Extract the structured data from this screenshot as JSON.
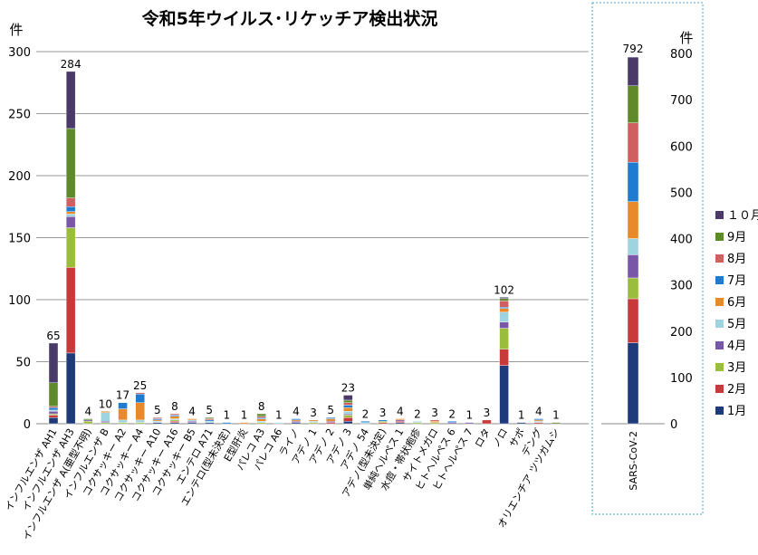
{
  "title": "令和5年ウイルス･リケッチア検出状況",
  "colors": {
    "1月": "#1f3a7a",
    "2月": "#c83a3a",
    "3月": "#9bbd3c",
    "4月": "#7a56a8",
    "5月": "#9ed4e0",
    "6月": "#e8892a",
    "7月": "#1f7bd0",
    "8月": "#d06060",
    "9月": "#5f8a2a",
    "１０月": "#4a3a6a"
  },
  "chart_data": [
    {
      "type": "bar",
      "stacked": true,
      "ylabel": "件",
      "ylim": [
        0,
        300
      ],
      "yticks": [
        0,
        50,
        100,
        150,
        200,
        250,
        300
      ],
      "grid": true,
      "categories": [
        "インフルエンザ AH1",
        "インフルエンザ AH3",
        "インフルエンザ A(亜型不明)",
        "インフルエンザ B",
        "コクサッキー A2",
        "コクサッキー A4",
        "コクサッキー A10",
        "コクサッキー A16",
        "コクサッキー B5",
        "エンテロ A71",
        "エンテロ(型未決定)",
        "E型肝炎",
        "パレコ A3",
        "パレコ A6",
        "ライノ",
        "アデノ 1",
        "アデノ 2",
        "アデノ 3",
        "アデノ 54",
        "アデノ(型未決定)",
        "単純ヘルペス 1",
        "水痘・帯状疱疹",
        "サイトメガロ",
        "ヒトヘルペス 6",
        "ヒトヘルペス 7",
        "ロタ",
        "ノロ",
        "サポ",
        "デング",
        "オリエンチア ツツガムシ"
      ],
      "totals": [
        65,
        284,
        4,
        10,
        17,
        25,
        5,
        8,
        4,
        5,
        1,
        1,
        8,
        1,
        4,
        3,
        5,
        23,
        2,
        3,
        4,
        2,
        3,
        2,
        1,
        3,
        102,
        1,
        4,
        1
      ],
      "series": [
        {
          "name": "1月",
          "values": [
            5,
            57,
            0,
            0,
            0,
            0,
            1,
            1,
            1,
            1,
            0,
            0,
            0,
            0,
            1,
            0,
            0,
            2,
            0,
            0,
            1,
            0,
            0,
            0,
            0,
            0,
            47,
            1,
            0,
            0
          ]
        },
        {
          "name": "2月",
          "values": [
            2,
            69,
            0,
            0,
            0,
            0,
            0,
            1,
            0,
            0,
            0,
            0,
            0,
            0,
            0,
            0,
            1,
            3,
            0,
            1,
            1,
            0,
            0,
            0,
            0,
            3,
            13,
            0,
            1,
            0
          ]
        },
        {
          "name": "3月",
          "values": [
            1,
            32,
            2,
            1,
            1,
            1,
            0,
            1,
            0,
            0,
            0,
            0,
            1,
            0,
            0,
            1,
            0,
            2,
            0,
            1,
            0,
            1,
            1,
            0,
            0,
            0,
            17,
            0,
            0,
            0
          ]
        },
        {
          "name": "4月",
          "values": [
            2,
            9,
            1,
            1,
            0,
            0,
            0,
            0,
            1,
            0,
            0,
            0,
            0,
            0,
            1,
            0,
            1,
            1,
            0,
            0,
            1,
            0,
            0,
            1,
            1,
            0,
            5,
            0,
            0,
            0
          ]
        },
        {
          "name": "5月",
          "values": [
            1,
            2,
            0,
            7,
            2,
            2,
            1,
            1,
            1,
            1,
            0,
            0,
            1,
            1,
            0,
            1,
            0,
            2,
            1,
            0,
            0,
            1,
            0,
            0,
            0,
            0,
            8,
            0,
            1,
            0
          ]
        },
        {
          "name": "6月",
          "values": [
            0,
            2,
            0,
            1,
            9,
            14,
            1,
            2,
            1,
            0,
            0,
            1,
            2,
            0,
            1,
            1,
            2,
            3,
            0,
            0,
            1,
            0,
            1,
            0,
            0,
            0,
            3,
            0,
            1,
            0
          ]
        },
        {
          "name": "7月",
          "values": [
            2,
            4,
            0,
            0,
            5,
            7,
            1,
            1,
            0,
            1,
            1,
            0,
            1,
            0,
            1,
            0,
            1,
            2,
            1,
            1,
            0,
            0,
            0,
            1,
            0,
            0,
            1,
            0,
            1,
            0
          ]
        },
        {
          "name": "8月",
          "values": [
            1,
            7,
            0,
            0,
            0,
            1,
            1,
            1,
            0,
            1,
            0,
            0,
            1,
            0,
            0,
            0,
            0,
            2,
            0,
            0,
            0,
            0,
            1,
            0,
            0,
            0,
            5,
            0,
            0,
            0
          ]
        },
        {
          "name": "9月",
          "values": [
            19,
            56,
            1,
            0,
            0,
            0,
            0,
            0,
            0,
            1,
            0,
            0,
            2,
            0,
            0,
            0,
            0,
            2,
            0,
            0,
            0,
            0,
            0,
            0,
            0,
            0,
            2,
            0,
            0,
            1
          ]
        },
        {
          "name": "１０月",
          "values": [
            32,
            46,
            0,
            0,
            0,
            0,
            0,
            0,
            0,
            0,
            0,
            0,
            0,
            0,
            0,
            0,
            0,
            4,
            0,
            0,
            0,
            0,
            0,
            0,
            0,
            0,
            1,
            0,
            0,
            0
          ]
        }
      ]
    },
    {
      "type": "bar",
      "stacked": true,
      "ylabel": "件",
      "ylim": [
        0,
        800
      ],
      "yticks": [
        0,
        100,
        200,
        300,
        400,
        500,
        600,
        700,
        800
      ],
      "categories": [
        "SARS-CoV-2"
      ],
      "totals": [
        792
      ],
      "series": [
        {
          "name": "1月",
          "values": [
            175
          ]
        },
        {
          "name": "2月",
          "values": [
            95
          ]
        },
        {
          "name": "3月",
          "values": [
            45
          ]
        },
        {
          "name": "4月",
          "values": [
            50
          ]
        },
        {
          "name": "5月",
          "values": [
            35
          ]
        },
        {
          "name": "6月",
          "values": [
            80
          ]
        },
        {
          "name": "7月",
          "values": [
            85
          ]
        },
        {
          "name": "8月",
          "values": [
            85
          ]
        },
        {
          "name": "9月",
          "values": [
            80
          ]
        },
        {
          "name": "１０月",
          "values": [
            62
          ]
        }
      ]
    }
  ],
  "legend": {
    "position": "right",
    "items": [
      "１０月",
      "9月",
      "8月",
      "7月",
      "6月",
      "5月",
      "4月",
      "3月",
      "2月",
      "1月"
    ]
  }
}
